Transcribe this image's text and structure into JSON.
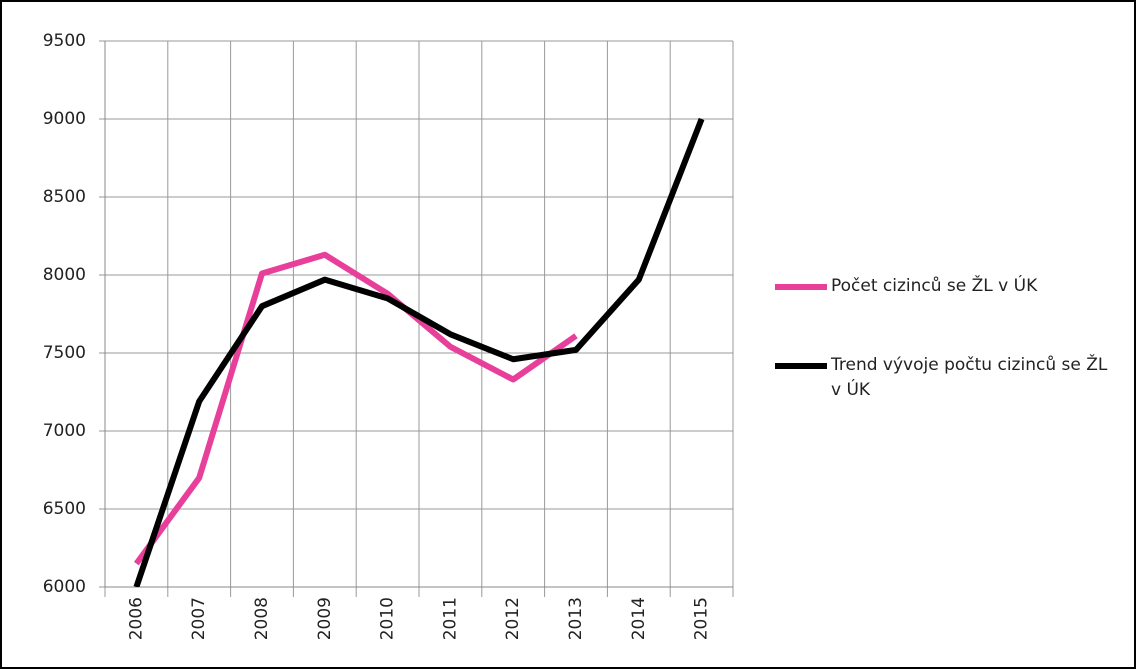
{
  "chart_data": {
    "type": "line",
    "categories": [
      "2006",
      "2007",
      "2008",
      "2009",
      "2010",
      "2011",
      "2012",
      "2013",
      "2014",
      "2015"
    ],
    "series": [
      {
        "name": "Počet cizinců se ŽL v ÚK",
        "color": "#e8409a",
        "values": [
          6150,
          6700,
          8010,
          8130,
          7880,
          7540,
          7330,
          7610,
          null,
          null
        ]
      },
      {
        "name": "Trend vývoje počtu cizinců se ŽL v ÚK",
        "color": "#000000",
        "values": [
          6000,
          7190,
          7800,
          7970,
          7850,
          7620,
          7460,
          7520,
          7970,
          9000
        ]
      }
    ],
    "ylim": [
      6000,
      9500
    ],
    "yticks": [
      6000,
      6500,
      7000,
      7500,
      8000,
      8500,
      9000,
      9500
    ],
    "grid": true,
    "legend": "right"
  }
}
